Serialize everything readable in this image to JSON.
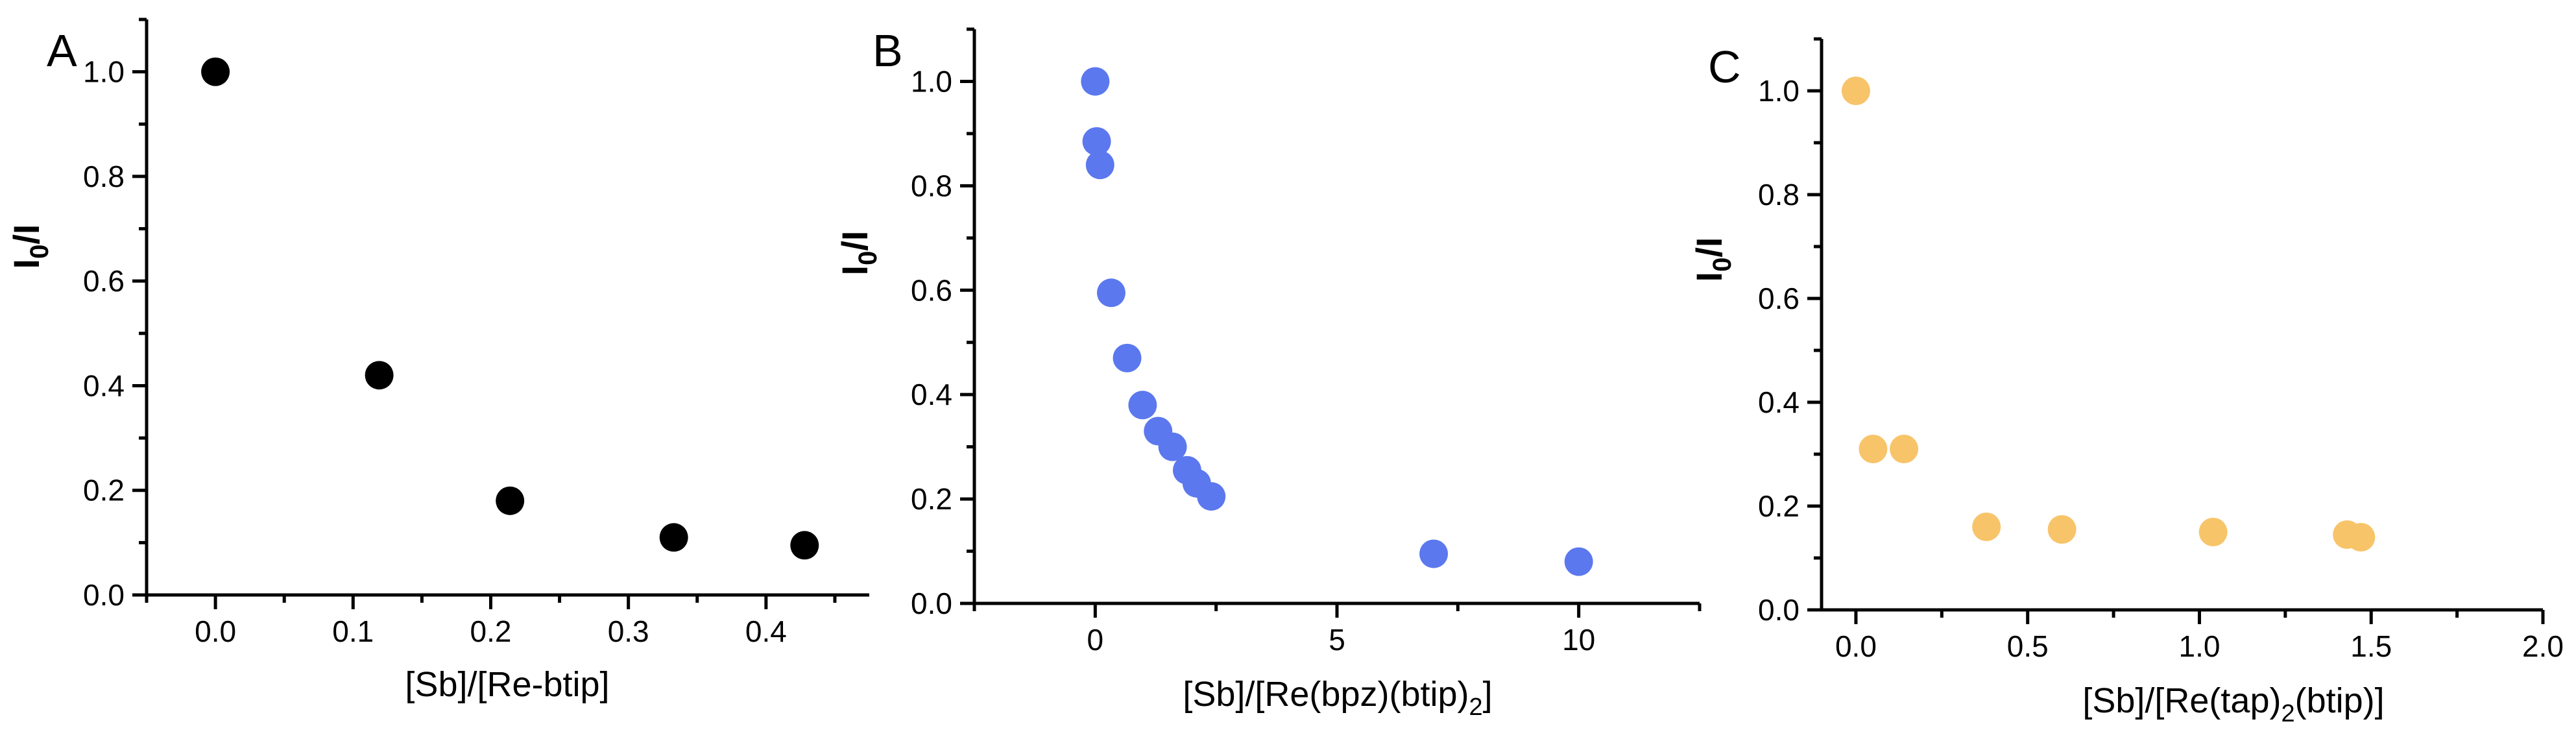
{
  "chart_data": [
    {
      "type": "scatter",
      "panel_label": "A",
      "xlabel": "[Sb]/[Re-btip]",
      "ylabel_main": "I",
      "ylabel_sub": "0",
      "ylabel_tail": "/I",
      "xlim": [
        -0.05,
        0.475
      ],
      "ylim": [
        0.0,
        1.1
      ],
      "xticks": [
        0.0,
        0.1,
        0.2,
        0.3,
        0.4
      ],
      "xtick_labels": [
        "0.0",
        "0.1",
        "0.2",
        "0.3",
        "0.4"
      ],
      "yticks": [
        0.0,
        0.2,
        0.4,
        0.6,
        0.8,
        1.0
      ],
      "ytick_labels": [
        "0.0",
        "0.2",
        "0.4",
        "0.6",
        "0.8",
        "1.0"
      ],
      "marker_color": "#000000",
      "series": [
        {
          "x": [
            0.0,
            0.119,
            0.214,
            0.333,
            0.428
          ],
          "y": [
            1.0,
            0.42,
            0.18,
            0.11,
            0.095
          ]
        }
      ]
    },
    {
      "type": "scatter",
      "panel_label": "B",
      "xlabel_main": "[Sb]/[Re(bpz)(btip)",
      "xlabel_sub": "2",
      "xlabel_tail": "]",
      "ylabel_main": "I",
      "ylabel_sub": "0",
      "ylabel_tail": "/I",
      "xlim": [
        -2.5,
        12.5
      ],
      "ylim": [
        0.0,
        1.1
      ],
      "xticks": [
        0,
        5,
        10
      ],
      "xtick_labels": [
        "0",
        "5",
        "10"
      ],
      "yticks": [
        0.0,
        0.2,
        0.4,
        0.6,
        0.8,
        1.0
      ],
      "ytick_labels": [
        "0.0",
        "0.2",
        "0.4",
        "0.6",
        "0.8",
        "1.0"
      ],
      "marker_color": "#5b78ee",
      "series": [
        {
          "x": [
            0.0,
            0.03,
            0.1,
            0.33,
            0.66,
            0.98,
            1.3,
            1.6,
            1.9,
            2.1,
            2.4,
            7.0,
            10.0
          ],
          "y": [
            1.0,
            0.885,
            0.84,
            0.595,
            0.47,
            0.38,
            0.33,
            0.3,
            0.255,
            0.23,
            0.205,
            0.095,
            0.08
          ]
        }
      ]
    },
    {
      "type": "scatter",
      "panel_label": "C",
      "xlabel_main": "[Sb]/[Re(tap)",
      "xlabel_sub": "2",
      "xlabel_tail": "(btip)]",
      "ylabel_main": "I",
      "ylabel_sub": "0",
      "ylabel_tail": "/I",
      "xlim": [
        -0.1,
        2.0
      ],
      "ylim": [
        0.0,
        1.1
      ],
      "xticks": [
        0.0,
        0.5,
        1.0,
        1.5,
        2.0
      ],
      "xtick_labels": [
        "0.0",
        "0.5",
        "1.0",
        "1.5",
        "2.0"
      ],
      "yticks": [
        0.0,
        0.2,
        0.4,
        0.6,
        0.8,
        1.0
      ],
      "ytick_labels": [
        "0.0",
        "0.2",
        "0.4",
        "0.6",
        "0.8",
        "1.0"
      ],
      "marker_color": "#f8c46a",
      "series": [
        {
          "x": [
            0.0,
            0.05,
            0.14,
            0.38,
            0.6,
            1.04,
            1.43,
            1.47
          ],
          "y": [
            1.0,
            0.31,
            0.31,
            0.16,
            0.155,
            0.15,
            0.145,
            0.14
          ]
        }
      ]
    }
  ]
}
